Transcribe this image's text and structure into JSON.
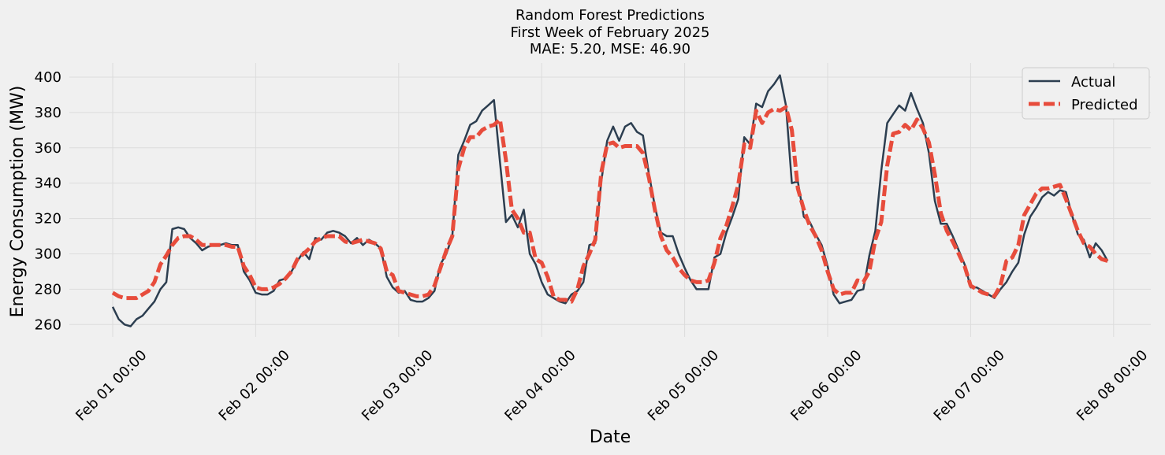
{
  "chart_data": {
    "type": "line",
    "title_lines": [
      "Random Forest Predictions",
      "First Week of February 2025",
      "MAE: 5.20, MSE: 46.90"
    ],
    "xlabel": "Date",
    "ylabel": "Energy Consumption (MW)",
    "x_start": "2025-02-01 00:00",
    "x_step_hours": 1,
    "x_ticks": [
      "Feb 01 00:00",
      "Feb 02 00:00",
      "Feb 03 00:00",
      "Feb 04 00:00",
      "Feb 05 00:00",
      "Feb 06 00:00",
      "Feb 07 00:00",
      "Feb 08 00:00"
    ],
    "ylim": [
      253,
      408
    ],
    "y_ticks": [
      260,
      280,
      300,
      320,
      340,
      360,
      380,
      400
    ],
    "grid": true,
    "legend_position": "upper right",
    "series": [
      {
        "name": "Actual",
        "color": "#2c3e50",
        "style": "solid",
        "values": [
          270,
          263,
          260,
          259,
          263,
          265,
          269,
          273,
          280,
          284,
          314,
          315,
          314,
          309,
          306,
          302,
          304,
          305,
          305,
          306,
          305,
          305,
          290,
          285,
          278,
          277,
          277,
          279,
          285,
          286,
          290,
          296,
          301,
          297,
          309,
          308,
          312,
          313,
          312,
          310,
          306,
          309,
          305,
          308,
          306,
          303,
          287,
          281,
          278,
          279,
          274,
          273,
          273,
          275,
          279,
          294,
          300,
          310,
          356,
          364,
          373,
          375,
          381,
          384,
          387,
          352,
          318,
          322,
          315,
          325,
          300,
          294,
          284,
          277,
          275,
          273,
          272,
          277,
          279,
          284,
          305,
          306,
          341,
          364,
          372,
          364,
          372,
          374,
          369,
          367,
          345,
          327,
          312,
          310,
          310,
          300,
          292,
          285,
          280,
          280,
          280,
          298,
          300,
          312,
          321,
          331,
          366,
          362,
          385,
          383,
          392,
          396,
          401,
          384,
          340,
          341,
          321,
          318,
          311,
          305,
          293,
          277,
          272,
          273,
          274,
          279,
          280,
          299,
          313,
          347,
          374,
          379,
          384,
          381,
          391,
          382,
          374,
          357,
          330,
          317,
          317,
          310,
          302,
          294,
          281,
          281,
          279,
          277,
          275,
          280,
          284,
          290,
          295,
          311,
          321,
          326,
          332,
          335,
          333,
          336,
          335,
          322,
          311,
          308,
          298,
          306,
          302,
          296
        ]
      },
      {
        "name": "Predicted",
        "color": "#e74c3c",
        "style": "dashed",
        "values": [
          278,
          276,
          275,
          275,
          275,
          277,
          279,
          284,
          294,
          299,
          305,
          309,
          310,
          310,
          308,
          305,
          305,
          305,
          305,
          305,
          304,
          304,
          293,
          288,
          281,
          280,
          280,
          281,
          283,
          286,
          290,
          297,
          300,
          303,
          307,
          309,
          310,
          310,
          310,
          307,
          306,
          307,
          308,
          307,
          306,
          303,
          290,
          288,
          279,
          278,
          277,
          276,
          276,
          277,
          282,
          292,
          302,
          310,
          348,
          360,
          366,
          366,
          370,
          372,
          373,
          376,
          353,
          325,
          320,
          312,
          312,
          297,
          295,
          287,
          276,
          274,
          274,
          273,
          280,
          293,
          300,
          308,
          346,
          362,
          363,
          360,
          361,
          361,
          361,
          357,
          343,
          325,
          310,
          302,
          298,
          292,
          288,
          285,
          284,
          284,
          285,
          295,
          309,
          316,
          327,
          339,
          362,
          360,
          381,
          374,
          380,
          382,
          381,
          383,
          370,
          337,
          325,
          316,
          310,
          302,
          290,
          280,
          277,
          278,
          278,
          285,
          284,
          290,
          308,
          318,
          350,
          368,
          369,
          373,
          370,
          376,
          371,
          363,
          345,
          323,
          313,
          307,
          300,
          293,
          282,
          280,
          278,
          277,
          276,
          282,
          296,
          298,
          305,
          322,
          328,
          334,
          337,
          337,
          338,
          339,
          331,
          322,
          313,
          306,
          304,
          300,
          297,
          296
        ]
      }
    ]
  }
}
